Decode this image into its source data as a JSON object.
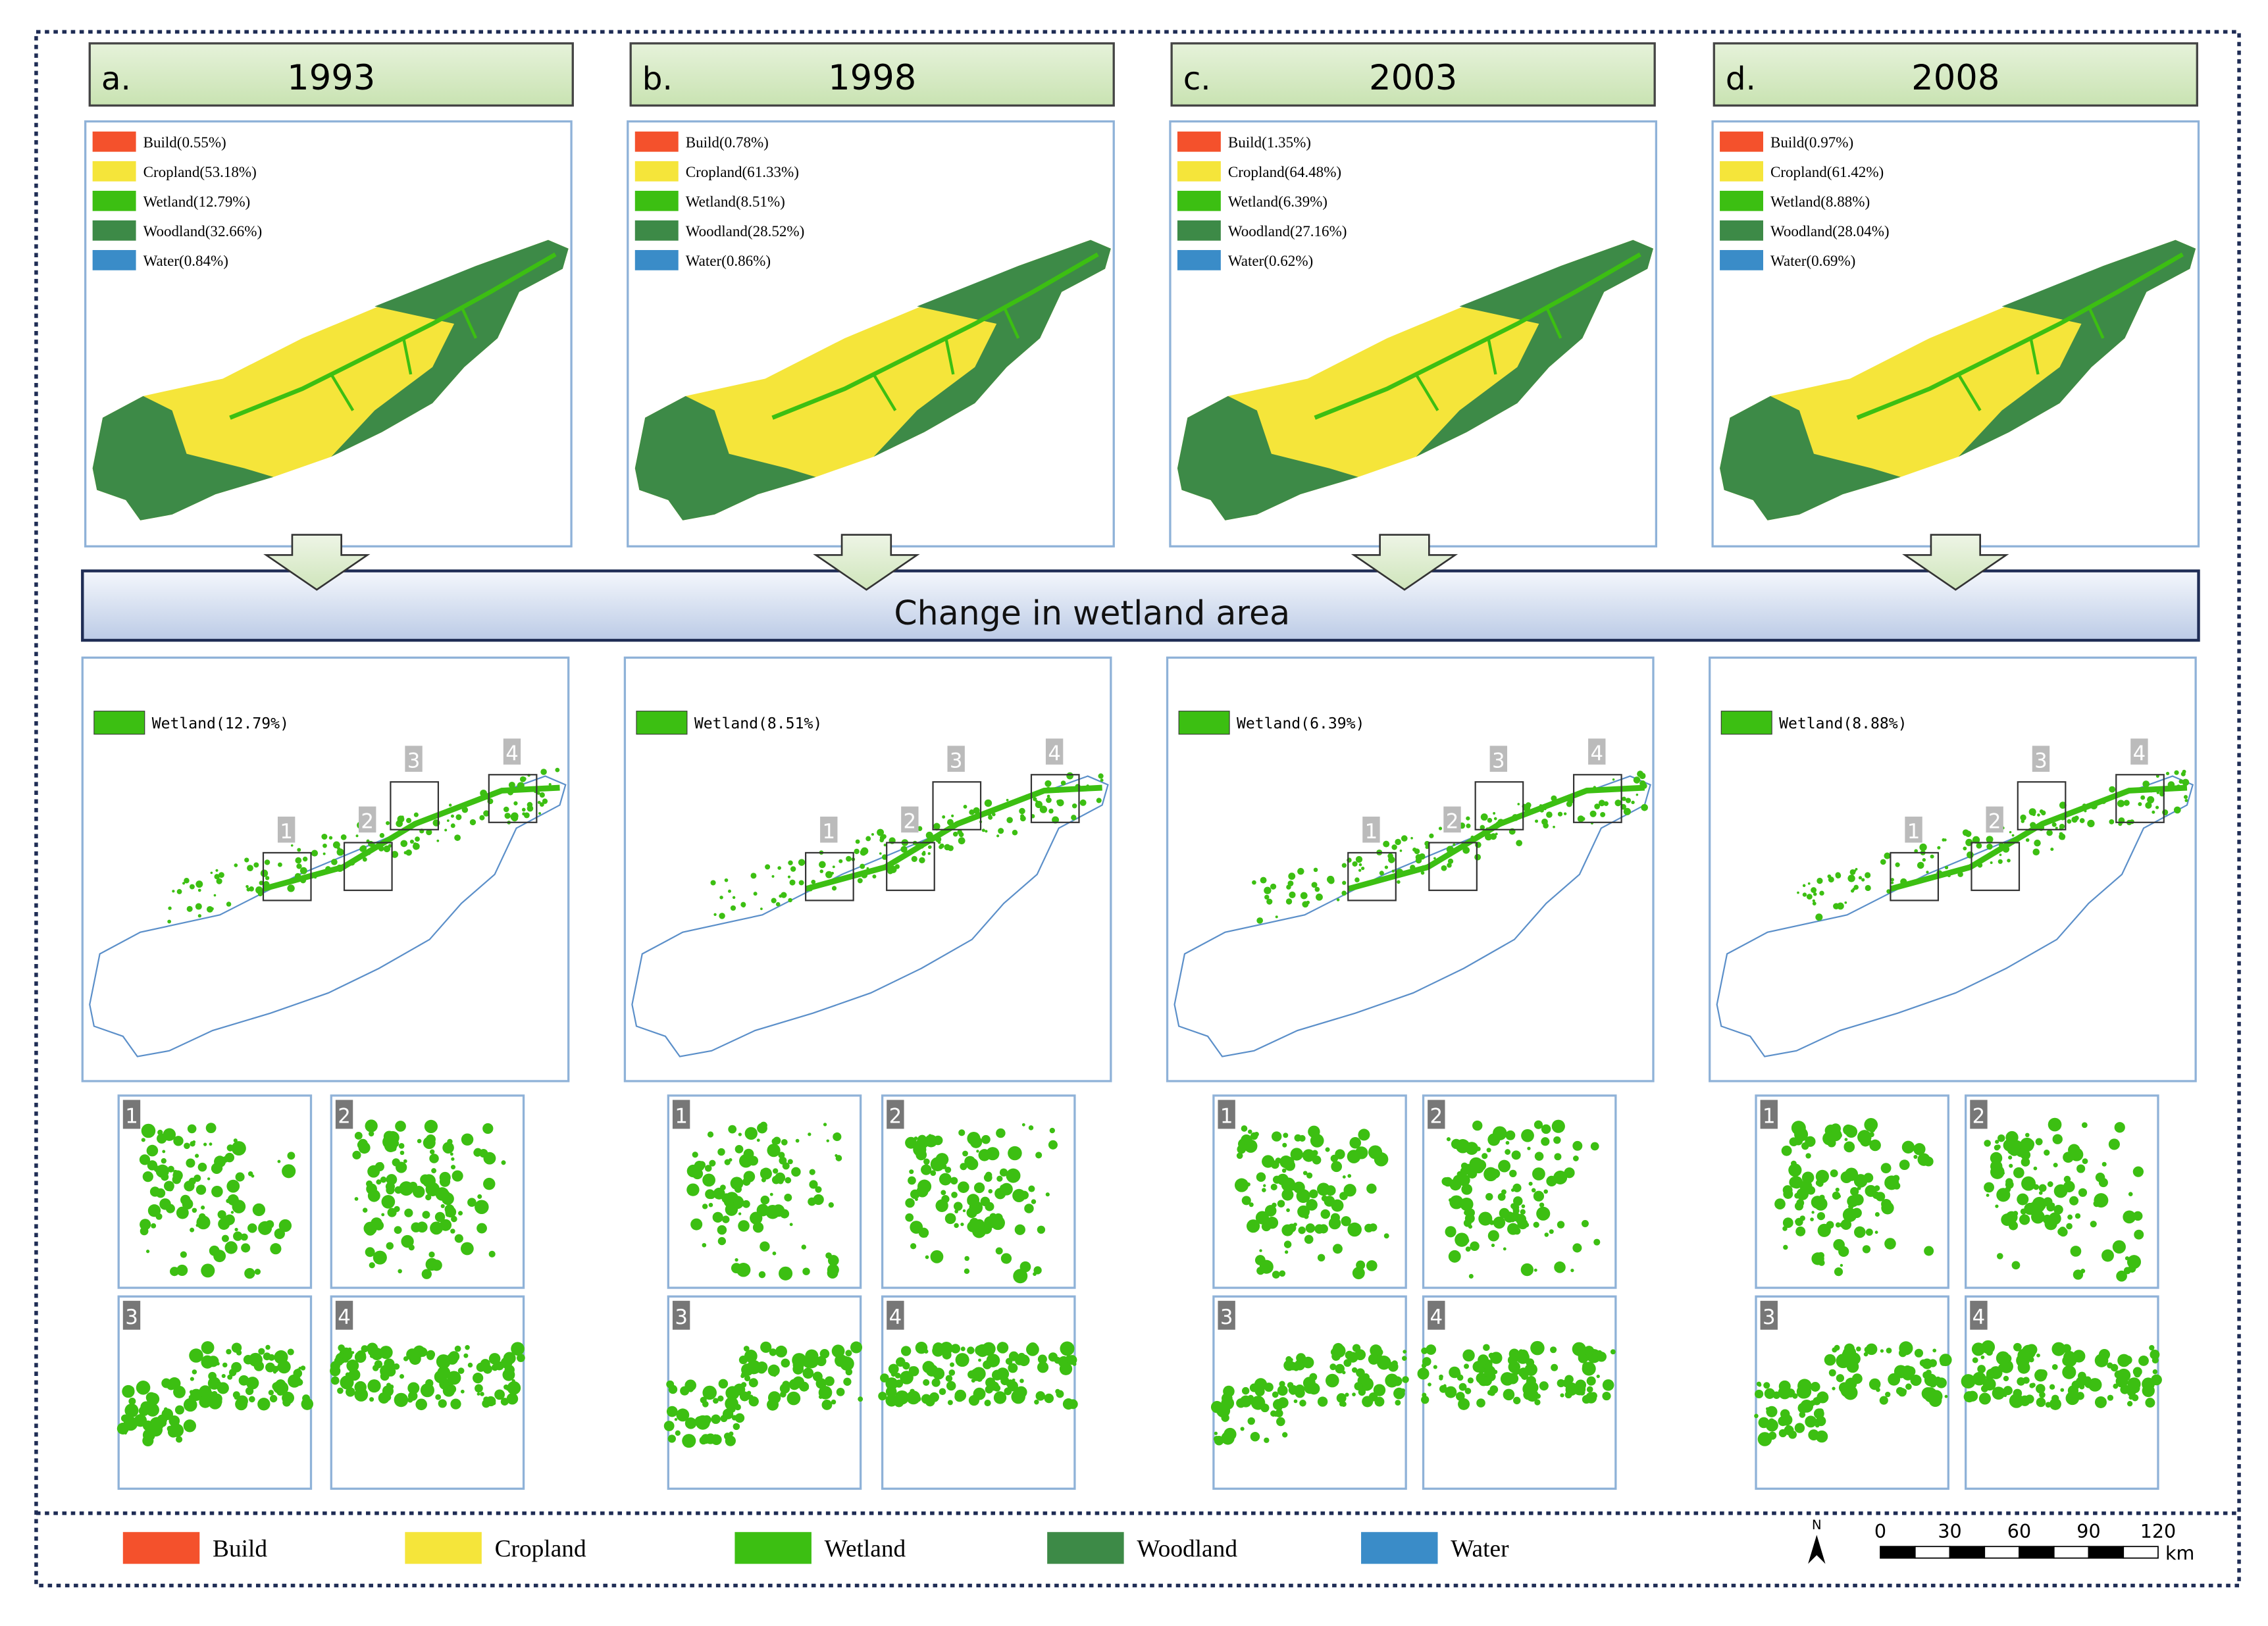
{
  "panels": [
    {
      "letter": "a.",
      "year": "1993",
      "legend": [
        "Build(0.55%)",
        "Cropland(53.18%)",
        "Wetland(12.79%)",
        "Woodland(32.66%)",
        "Water(0.84%)"
      ],
      "wetland_label": "Wetland(12.79%)"
    },
    {
      "letter": "b.",
      "year": "1998",
      "legend": [
        "Build(0.78%)",
        "Cropland(61.33%)",
        "Wetland(8.51%)",
        "Woodland(28.52%)",
        "Water(0.86%)"
      ],
      "wetland_label": "Wetland(8.51%)"
    },
    {
      "letter": "c.",
      "year": "2003",
      "legend": [
        "Build(1.35%)",
        "Cropland(64.48%)",
        "Wetland(6.39%)",
        "Woodland(27.16%)",
        "Water(0.62%)"
      ],
      "wetland_label": "Wetland(6.39%)"
    },
    {
      "letter": "d.",
      "year": "2008",
      "legend": [
        "Build(0.97%)",
        "Cropland(61.42%)",
        "Wetland(8.88%)",
        "Woodland(28.04%)",
        "Water(0.69%)"
      ],
      "wetland_label": "Wetland(8.88%)"
    }
  ],
  "banner": "Change in wetland area",
  "zoom_labels": [
    "1",
    "2",
    "3",
    "4"
  ],
  "legend": [
    {
      "label": "Build",
      "color": "#f4512c"
    },
    {
      "label": "Cropland",
      "color": "#f5e53a"
    },
    {
      "label": "Wetland",
      "color": "#3cbf12"
    },
    {
      "label": "Woodland",
      "color": "#3d8a47"
    },
    {
      "label": "Water",
      "color": "#3a8cc8"
    }
  ],
  "north": "N",
  "scale": {
    "ticks": [
      "0",
      "30",
      "60",
      "90",
      "120"
    ],
    "unit": "km"
  }
}
